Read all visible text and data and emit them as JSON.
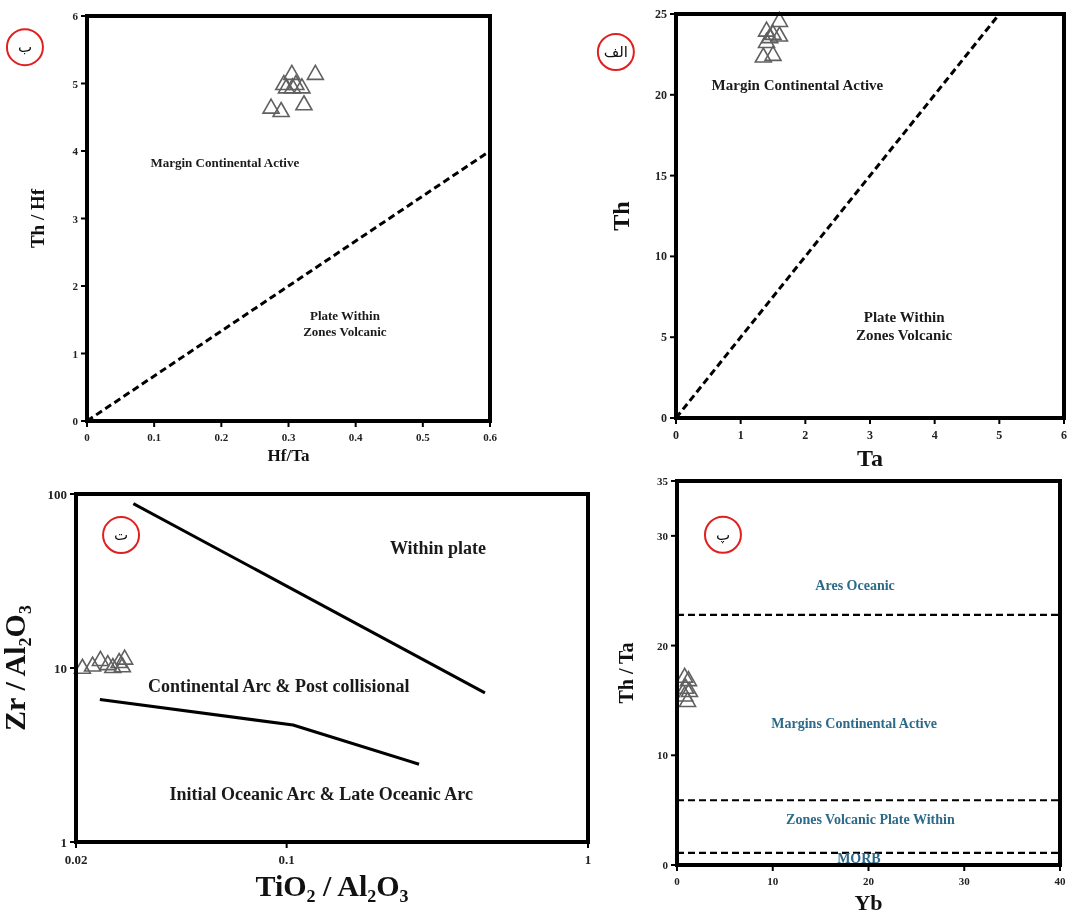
{
  "chart_data": [
    {
      "type": "scatter",
      "xlabel": "Hf/Ta",
      "ylabel": "Th / Hf",
      "xlim": [
        0,
        0.6
      ],
      "ylim": [
        0,
        6
      ],
      "xticks": [
        0,
        0.1,
        0.2,
        0.3,
        0.4,
        0.5,
        0.6
      ],
      "yticks": [
        0,
        1,
        2,
        3,
        4,
        5,
        6
      ],
      "series": [
        {
          "marker": "triangle",
          "color": "#606060",
          "x": [
            0.305,
            0.34,
            0.293,
            0.297,
            0.311,
            0.32,
            0.306,
            0.274,
            0.289,
            0.323
          ],
          "values": [
            5.15,
            5.15,
            5.0,
            4.95,
            5.0,
            4.95,
            4.95,
            4.65,
            4.6,
            4.7
          ]
        },
        {
          "type": "line",
          "color": "#000000",
          "line_style": "dashed",
          "x": [
            0,
            0.6
          ],
          "values": [
            0,
            4
          ]
        }
      ],
      "annotations": [
        "ب",
        "Margin Continental Active",
        "Plate Within\nZones Volcanic"
      ]
    },
    {
      "type": "scatter",
      "xlabel": "Ta",
      "ylabel": "Th",
      "xlim": [
        0,
        6
      ],
      "ylim": [
        0,
        25
      ],
      "xticks": [
        0,
        1,
        2,
        3,
        4,
        5,
        6
      ],
      "yticks": [
        0,
        5,
        10,
        15,
        20,
        25
      ],
      "series": [
        {
          "marker": "triangle",
          "color": "#606060",
          "x": [
            1.4,
            1.6,
            1.5,
            1.6,
            1.4,
            1.35,
            1.5,
            1.45
          ],
          "values": [
            24.0,
            24.6,
            23.8,
            23.7,
            23.3,
            22.4,
            22.5,
            23.6
          ]
        },
        {
          "type": "line",
          "color": "#000000",
          "line_style": "dashed",
          "x": [
            0,
            5
          ],
          "values": [
            0,
            25
          ]
        }
      ],
      "annotations": [
        "الف",
        "Margin Continental Active",
        "Plate Within\nZones Volcanic"
      ]
    },
    {
      "type": "scatter",
      "xlabel": "TiO₂ / Al₂O₃",
      "ylabel": "Zr / Al₂O₃",
      "log": "xy",
      "xlim": [
        0.02,
        1
      ],
      "ylim": [
        1,
        100
      ],
      "xticks": [
        0.02,
        0.1,
        1
      ],
      "yticks": [
        1,
        10,
        100
      ],
      "series": [
        {
          "marker": "triangle",
          "color": "#606060",
          "x": [
            0.021,
            0.0227,
            0.0241,
            0.0255,
            0.0265,
            0.0278,
            0.029,
            0.0285
          ],
          "values": [
            10.1,
            10.4,
            11.2,
            10.6,
            10.2,
            10.9,
            11.4,
            10.3
          ]
        },
        {
          "type": "line",
          "color": "#000000",
          "line_style": "solid",
          "x": [
            0.031,
            0.455
          ],
          "values": [
            88,
            7.2
          ]
        },
        {
          "type": "line",
          "color": "#000000",
          "line_style": "solid",
          "x": [
            0.024,
            0.105,
            0.275
          ],
          "values": [
            6.6,
            4.7,
            2.8
          ]
        }
      ],
      "annotations": [
        "ت",
        "Within plate",
        "Continental Arc & Post collisional",
        "Initial Oceanic Arc & Late Oceanic Arc"
      ]
    },
    {
      "type": "scatter",
      "xlabel": "Yb",
      "ylabel": "Th / Ta",
      "xlim": [
        0,
        40
      ],
      "ylim": [
        0,
        35
      ],
      "xticks": [
        0,
        10,
        20,
        30,
        40
      ],
      "yticks": [
        0,
        10,
        20,
        30,
        35
      ],
      "series": [
        {
          "marker": "triangle",
          "color": "#606060",
          "x": [
            0.8,
            1.2,
            0.9,
            1.3,
            0.8,
            1.1
          ],
          "values": [
            17.2,
            16.9,
            16.2,
            15.9,
            15.5,
            15.0
          ]
        }
      ],
      "ref_lines": [
        {
          "axis": "y",
          "value": 22.8,
          "line_style": "dashed",
          "color": "#000000"
        },
        {
          "axis": "y",
          "value": 5.9,
          "line_style": "dashed",
          "color": "#000000"
        },
        {
          "axis": "y",
          "value": 1.1,
          "line_style": "dashed",
          "color": "#000000"
        }
      ],
      "annotations": [
        "پ",
        "Ares Oceanic",
        "Margins Continental Active",
        "Zones Volcanic Plate Within",
        "MORB"
      ]
    }
  ]
}
